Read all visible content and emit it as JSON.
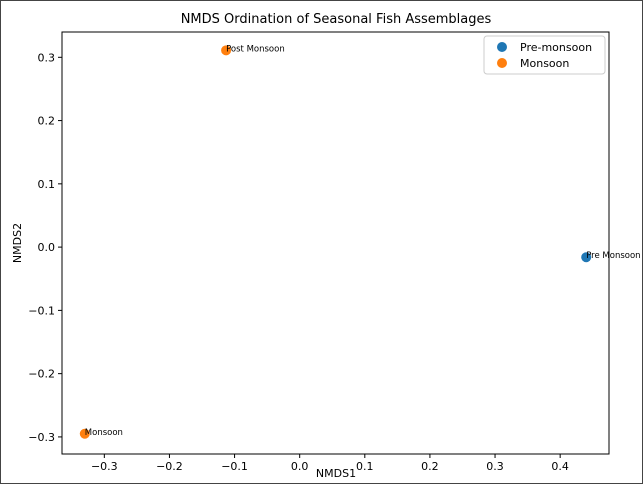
{
  "chart_data": {
    "type": "scatter",
    "title": "NMDS Ordination of Seasonal Fish Assemblages",
    "xlabel": "NMDS1",
    "ylabel": "NMDS2",
    "xlim": [
      -0.365,
      0.475
    ],
    "ylim": [
      -0.327,
      0.34
    ],
    "xticks": [
      -0.3,
      -0.2,
      -0.1,
      0.0,
      0.1,
      0.2,
      0.3,
      0.4
    ],
    "xtick_labels": [
      "−0.3",
      "−0.2",
      "−0.1",
      "0.0",
      "0.1",
      "0.2",
      "0.3",
      "0.4"
    ],
    "yticks": [
      -0.3,
      -0.2,
      -0.1,
      0.0,
      0.1,
      0.2,
      0.3
    ],
    "ytick_labels": [
      "−0.3",
      "−0.2",
      "−0.1",
      "0.0",
      "0.1",
      "0.2",
      "0.3"
    ],
    "grid": false,
    "legend_position": "top-right",
    "series": [
      {
        "name": "Pre-monsoon",
        "color": "#1f77b4",
        "points": [
          {
            "x": 0.44,
            "y": -0.016,
            "label": "Pre Monsoon"
          }
        ]
      },
      {
        "name": "Monsoon",
        "color": "#ff7f0e",
        "points": [
          {
            "x": -0.113,
            "y": 0.311,
            "label": "Post Monsoon"
          },
          {
            "x": -0.33,
            "y": -0.295,
            "label": "Monsoon"
          }
        ]
      }
    ]
  }
}
